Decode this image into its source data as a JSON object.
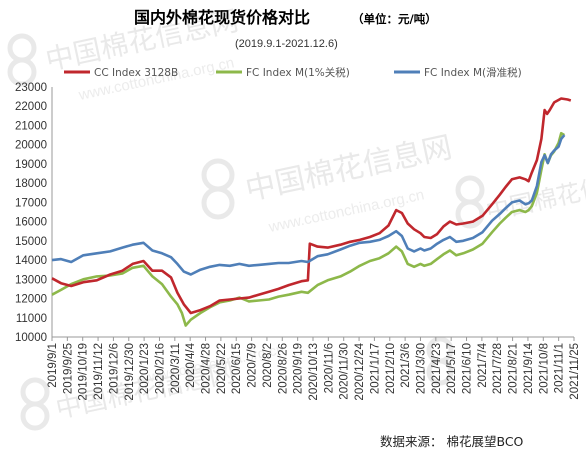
{
  "chart_data": {
    "type": "line",
    "title": "国内外棉花现货价格对比",
    "unit": "（单位：元/吨）",
    "subtitle": "(2019.9.1-2021.12.6)",
    "source": "数据来源：  棉花展望BCO",
    "watermark": {
      "brand": "中国棉花信息网",
      "url": "www.cottonchina.org.cn"
    },
    "grid": false,
    "legend_position": "top",
    "ylim": [
      10000,
      23000
    ],
    "yticks": [
      10000,
      11000,
      12000,
      13000,
      14000,
      15000,
      16000,
      17000,
      18000,
      19000,
      20000,
      21000,
      22000,
      23000
    ],
    "xlim": [
      "2019-09-01",
      "2021-11-25"
    ],
    "xticks": [
      "2019/9/1",
      "2019/9/25",
      "2019/10/19",
      "2019/11/12",
      "2019/12/6",
      "2019/12/30",
      "2020/1/23",
      "2020/2/16",
      "2020/3/11",
      "2020/4/4",
      "2020/4/28",
      "2020/5/22",
      "2020/6/15",
      "2020/7/9",
      "2020/8/2",
      "2020/8/26",
      "2020/9/19",
      "2020/10/13",
      "2020/11/6",
      "2020/11/30",
      "2020/12/24",
      "2021/1/17",
      "2021/2/10",
      "2021/3/6",
      "2021/3/30",
      "2021/4/23",
      "2021/5/17",
      "2021/6/10",
      "2021/7/4",
      "2021/7/28",
      "2021/8/21",
      "2021/9/14",
      "2021/10/8",
      "2021/11/1",
      "2021/11/25"
    ],
    "series": [
      {
        "name": "CC Index 3128B",
        "color": "#c0272d",
        "points": [
          [
            "2019-09-01",
            13050
          ],
          [
            "2019-09-15",
            12800
          ],
          [
            "2019-10-01",
            12650
          ],
          [
            "2019-10-20",
            12850
          ],
          [
            "2019-11-10",
            12950
          ],
          [
            "2019-12-01",
            13250
          ],
          [
            "2019-12-20",
            13450
          ],
          [
            "2020-01-05",
            13800
          ],
          [
            "2020-01-22",
            13950
          ],
          [
            "2020-02-05",
            13450
          ],
          [
            "2020-02-20",
            13450
          ],
          [
            "2020-03-05",
            13100
          ],
          [
            "2020-03-15",
            12300
          ],
          [
            "2020-03-25",
            11700
          ],
          [
            "2020-04-05",
            11250
          ],
          [
            "2020-04-20",
            11400
          ],
          [
            "2020-05-05",
            11600
          ],
          [
            "2020-05-20",
            11900
          ],
          [
            "2020-06-05",
            11950
          ],
          [
            "2020-06-20",
            12000
          ],
          [
            "2020-07-05",
            12050
          ],
          [
            "2020-07-20",
            12200
          ],
          [
            "2020-08-05",
            12350
          ],
          [
            "2020-08-20",
            12500
          ],
          [
            "2020-09-05",
            12700
          ],
          [
            "2020-09-25",
            12900
          ],
          [
            "2020-10-05",
            12950
          ],
          [
            "2020-10-08",
            14850
          ],
          [
            "2020-10-20",
            14700
          ],
          [
            "2020-11-05",
            14650
          ],
          [
            "2020-11-25",
            14800
          ],
          [
            "2020-12-10",
            14950
          ],
          [
            "2020-12-25",
            15050
          ],
          [
            "2021-01-10",
            15200
          ],
          [
            "2021-01-25",
            15400
          ],
          [
            "2021-02-08",
            15800
          ],
          [
            "2021-02-20",
            16600
          ],
          [
            "2021-03-01",
            16450
          ],
          [
            "2021-03-10",
            15900
          ],
          [
            "2021-03-20",
            15600
          ],
          [
            "2021-03-30",
            15400
          ],
          [
            "2021-04-05",
            15200
          ],
          [
            "2021-04-15",
            15150
          ],
          [
            "2021-04-25",
            15350
          ],
          [
            "2021-05-05",
            15750
          ],
          [
            "2021-05-15",
            16000
          ],
          [
            "2021-05-25",
            15850
          ],
          [
            "2021-06-05",
            15900
          ],
          [
            "2021-06-20",
            16000
          ],
          [
            "2021-07-05",
            16300
          ],
          [
            "2021-07-20",
            16900
          ],
          [
            "2021-08-01",
            17400
          ],
          [
            "2021-08-10",
            17800
          ],
          [
            "2021-08-20",
            18200
          ],
          [
            "2021-09-01",
            18300
          ],
          [
            "2021-09-10",
            18200
          ],
          [
            "2021-09-15",
            18100
          ],
          [
            "2021-09-20",
            18550
          ],
          [
            "2021-09-28",
            19200
          ],
          [
            "2021-10-05",
            20300
          ],
          [
            "2021-10-10",
            21800
          ],
          [
            "2021-10-14",
            21600
          ],
          [
            "2021-10-18",
            21800
          ],
          [
            "2021-10-25",
            22200
          ],
          [
            "2021-11-05",
            22400
          ],
          [
            "2021-11-15",
            22350
          ],
          [
            "2021-11-20",
            22300
          ]
        ]
      },
      {
        "name": "FC Index M(1%关税)",
        "color": "#8db84a",
        "points": [
          [
            "2019-09-01",
            12200
          ],
          [
            "2019-09-15",
            12450
          ],
          [
            "2019-10-01",
            12750
          ],
          [
            "2019-10-20",
            13000
          ],
          [
            "2019-11-10",
            13150
          ],
          [
            "2019-12-01",
            13200
          ],
          [
            "2019-12-20",
            13300
          ],
          [
            "2020-01-05",
            13600
          ],
          [
            "2020-01-22",
            13700
          ],
          [
            "2020-02-05",
            13150
          ],
          [
            "2020-02-20",
            12750
          ],
          [
            "2020-03-05",
            12100
          ],
          [
            "2020-03-15",
            11700
          ],
          [
            "2020-03-22",
            11250
          ],
          [
            "2020-03-28",
            10600
          ],
          [
            "2020-04-05",
            10900
          ],
          [
            "2020-04-20",
            11250
          ],
          [
            "2020-05-05",
            11550
          ],
          [
            "2020-05-20",
            11800
          ],
          [
            "2020-06-05",
            11900
          ],
          [
            "2020-06-20",
            12050
          ],
          [
            "2020-07-05",
            11850
          ],
          [
            "2020-07-20",
            11900
          ],
          [
            "2020-08-05",
            11950
          ],
          [
            "2020-08-20",
            12100
          ],
          [
            "2020-09-05",
            12200
          ],
          [
            "2020-09-25",
            12350
          ],
          [
            "2020-10-05",
            12300
          ],
          [
            "2020-10-20",
            12700
          ],
          [
            "2020-11-05",
            12950
          ],
          [
            "2020-11-25",
            13150
          ],
          [
            "2020-12-10",
            13400
          ],
          [
            "2020-12-25",
            13700
          ],
          [
            "2021-01-10",
            13950
          ],
          [
            "2021-01-25",
            14100
          ],
          [
            "2021-02-08",
            14350
          ],
          [
            "2021-02-20",
            14700
          ],
          [
            "2021-03-01",
            14450
          ],
          [
            "2021-03-10",
            13800
          ],
          [
            "2021-03-20",
            13650
          ],
          [
            "2021-03-30",
            13800
          ],
          [
            "2021-04-05",
            13700
          ],
          [
            "2021-04-15",
            13800
          ],
          [
            "2021-04-25",
            14050
          ],
          [
            "2021-05-05",
            14300
          ],
          [
            "2021-05-15",
            14500
          ],
          [
            "2021-05-25",
            14250
          ],
          [
            "2021-06-05",
            14350
          ],
          [
            "2021-06-20",
            14550
          ],
          [
            "2021-07-05",
            14850
          ],
          [
            "2021-07-20",
            15450
          ],
          [
            "2021-08-01",
            15900
          ],
          [
            "2021-08-10",
            16200
          ],
          [
            "2021-08-20",
            16500
          ],
          [
            "2021-09-01",
            16600
          ],
          [
            "2021-09-10",
            16500
          ],
          [
            "2021-09-15",
            16600
          ],
          [
            "2021-09-20",
            16800
          ],
          [
            "2021-09-28",
            17500
          ],
          [
            "2021-10-05",
            18700
          ],
          [
            "2021-10-10",
            19500
          ],
          [
            "2021-10-15",
            19050
          ],
          [
            "2021-10-20",
            19450
          ],
          [
            "2021-10-25",
            19650
          ],
          [
            "2021-11-01",
            20100
          ],
          [
            "2021-11-05",
            20600
          ],
          [
            "2021-11-10",
            20500
          ]
        ]
      },
      {
        "name": "FC Index M(滑准税)",
        "color": "#4f7fb8",
        "points": [
          [
            "2019-09-01",
            14000
          ],
          [
            "2019-09-15",
            14050
          ],
          [
            "2019-10-01",
            13900
          ],
          [
            "2019-10-20",
            14250
          ],
          [
            "2019-11-10",
            14350
          ],
          [
            "2019-12-01",
            14450
          ],
          [
            "2019-12-20",
            14650
          ],
          [
            "2020-01-05",
            14800
          ],
          [
            "2020-01-22",
            14900
          ],
          [
            "2020-02-05",
            14500
          ],
          [
            "2020-02-20",
            14350
          ],
          [
            "2020-03-05",
            14150
          ],
          [
            "2020-03-15",
            13800
          ],
          [
            "2020-03-25",
            13400
          ],
          [
            "2020-04-05",
            13250
          ],
          [
            "2020-04-20",
            13500
          ],
          [
            "2020-05-05",
            13650
          ],
          [
            "2020-05-20",
            13750
          ],
          [
            "2020-06-05",
            13700
          ],
          [
            "2020-06-20",
            13800
          ],
          [
            "2020-07-05",
            13700
          ],
          [
            "2020-07-20",
            13750
          ],
          [
            "2020-08-05",
            13800
          ],
          [
            "2020-08-20",
            13850
          ],
          [
            "2020-09-05",
            13850
          ],
          [
            "2020-09-25",
            13950
          ],
          [
            "2020-10-05",
            13900
          ],
          [
            "2020-10-20",
            14200
          ],
          [
            "2020-11-05",
            14300
          ],
          [
            "2020-11-25",
            14550
          ],
          [
            "2020-12-10",
            14750
          ],
          [
            "2020-12-25",
            14900
          ],
          [
            "2021-01-10",
            14950
          ],
          [
            "2021-01-25",
            15050
          ],
          [
            "2021-02-08",
            15250
          ],
          [
            "2021-02-20",
            15500
          ],
          [
            "2021-03-01",
            15250
          ],
          [
            "2021-03-10",
            14600
          ],
          [
            "2021-03-20",
            14450
          ],
          [
            "2021-03-30",
            14600
          ],
          [
            "2021-04-05",
            14500
          ],
          [
            "2021-04-15",
            14600
          ],
          [
            "2021-04-25",
            14850
          ],
          [
            "2021-05-05",
            15050
          ],
          [
            "2021-05-15",
            15200
          ],
          [
            "2021-05-25",
            14950
          ],
          [
            "2021-06-05",
            15000
          ],
          [
            "2021-06-20",
            15150
          ],
          [
            "2021-07-05",
            15450
          ],
          [
            "2021-07-20",
            16050
          ],
          [
            "2021-08-01",
            16400
          ],
          [
            "2021-08-10",
            16700
          ],
          [
            "2021-08-20",
            17000
          ],
          [
            "2021-09-01",
            17100
          ],
          [
            "2021-09-10",
            16900
          ],
          [
            "2021-09-15",
            16950
          ],
          [
            "2021-09-20",
            17100
          ],
          [
            "2021-09-28",
            17850
          ],
          [
            "2021-10-05",
            19100
          ],
          [
            "2021-10-10",
            19450
          ],
          [
            "2021-10-15",
            19050
          ],
          [
            "2021-10-20",
            19500
          ],
          [
            "2021-10-25",
            19700
          ],
          [
            "2021-11-01",
            19900
          ],
          [
            "2021-11-05",
            20300
          ],
          [
            "2021-11-10",
            20500
          ]
        ]
      }
    ]
  }
}
